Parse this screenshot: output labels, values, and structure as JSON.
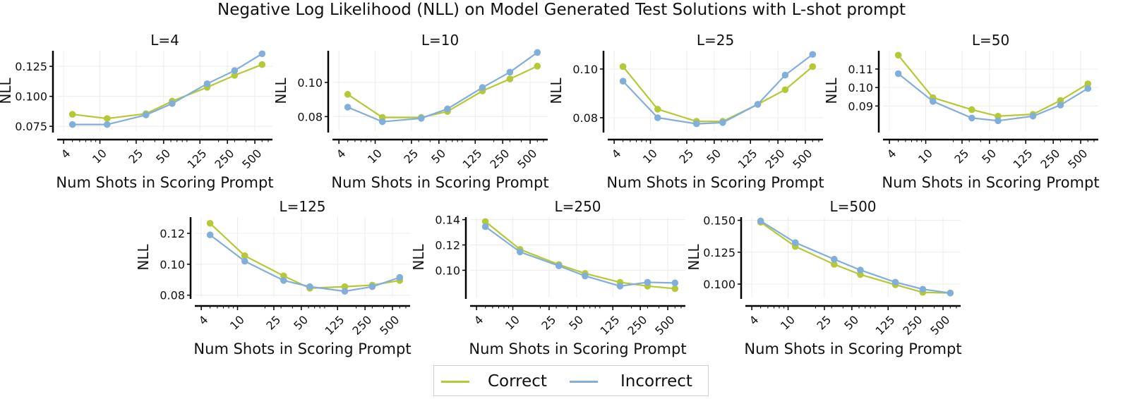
{
  "title": "Negative Log Likelihood (NLL) on Model Generated Test Solutions with L-shot prompt",
  "colors": {
    "correct": "#b5c934",
    "incorrect": "#82aedb",
    "grid": "#ececec",
    "axis": "#000000"
  },
  "legend": {
    "correct_label": "Correct",
    "incorrect_label": "Incorrect"
  },
  "chart_data": [
    {
      "type": "line",
      "title": "L=4",
      "xlabel": "Num Shots in Scoring Prompt",
      "ylabel": "NLL",
      "xscale": "log",
      "xlim": [
        3.4,
        780
      ],
      "ylim": [
        0.071,
        0.138
      ],
      "xticks": [
        4,
        10,
        25,
        50,
        125,
        250,
        500
      ],
      "yticks": [
        0.075,
        0.1,
        0.125
      ],
      "ytick_labels": [
        "0.075",
        "0.100",
        "0.125"
      ],
      "x": [
        5,
        12,
        32,
        62,
        150,
        300,
        600
      ],
      "series": [
        {
          "name": "Correct",
          "values": [
            0.085,
            0.0815,
            0.0855,
            0.096,
            0.1075,
            0.1175,
            0.1265
          ]
        },
        {
          "name": "Incorrect",
          "values": [
            0.0765,
            0.0765,
            0.0845,
            0.094,
            0.1105,
            0.1215,
            0.1355
          ]
        }
      ]
    },
    {
      "type": "line",
      "title": "L=10",
      "xlabel": "Num Shots in Scoring Prompt",
      "ylabel": "NLL",
      "xscale": "log",
      "xlim": [
        3.4,
        780
      ],
      "ylim": [
        0.0715,
        0.1185
      ],
      "xticks": [
        4,
        10,
        25,
        50,
        125,
        250,
        500
      ],
      "yticks": [
        0.08,
        0.1
      ],
      "ytick_labels": [
        "0.08",
        "0.10"
      ],
      "x": [
        5,
        12,
        32,
        62,
        150,
        300,
        600
      ],
      "series": [
        {
          "name": "Correct",
          "values": [
            0.093,
            0.0795,
            0.0795,
            0.083,
            0.095,
            0.102,
            0.1095
          ]
        },
        {
          "name": "Incorrect",
          "values": [
            0.0855,
            0.077,
            0.079,
            0.0845,
            0.097,
            0.106,
            0.1175
          ]
        }
      ]
    },
    {
      "type": "line",
      "title": "L=25",
      "xlabel": "Num Shots in Scoring Prompt",
      "ylabel": "NLL",
      "xscale": "log",
      "xlim": [
        3.4,
        780
      ],
      "ylim": [
        0.0745,
        0.1075
      ],
      "xticks": [
        4,
        10,
        25,
        50,
        125,
        250,
        500
      ],
      "yticks": [
        0.08,
        0.1
      ],
      "ytick_labels": [
        "0.08",
        "0.10"
      ],
      "x": [
        5,
        12,
        32,
        62,
        150,
        300,
        600
      ],
      "series": [
        {
          "name": "Correct",
          "values": [
            0.101,
            0.0835,
            0.0785,
            0.0785,
            0.0855,
            0.0915,
            0.101
          ]
        },
        {
          "name": "Incorrect",
          "values": [
            0.095,
            0.08,
            0.0775,
            0.078,
            0.0855,
            0.0975,
            0.106
          ]
        }
      ]
    },
    {
      "type": "line",
      "title": "L=50",
      "xlabel": "Num Shots in Scoring Prompt",
      "ylabel": "NLL",
      "xscale": "log",
      "xlim": [
        3.4,
        780
      ],
      "ylim": [
        0.0764,
        0.1199
      ],
      "xticks": [
        4,
        10,
        25,
        50,
        125,
        250,
        500
      ],
      "yticks": [
        0.09,
        0.1,
        0.11
      ],
      "ytick_labels": [
        "0.09",
        "0.10",
        "0.11"
      ],
      "x": [
        5,
        12,
        32,
        62,
        150,
        300,
        600
      ],
      "series": [
        {
          "name": "Correct",
          "values": [
            0.1175,
            0.0945,
            0.088,
            0.0845,
            0.0855,
            0.093,
            0.102
          ]
        },
        {
          "name": "Incorrect",
          "values": [
            0.1075,
            0.0925,
            0.0835,
            0.082,
            0.0845,
            0.0905,
            0.0995
          ]
        }
      ]
    },
    {
      "type": "line",
      "title": "L=125",
      "xlabel": "Num Shots in Scoring Prompt",
      "ylabel": "NLL",
      "xscale": "log",
      "xlim": [
        3.4,
        780
      ],
      "ylim": [
        0.0785,
        0.1305
      ],
      "xticks": [
        4,
        10,
        25,
        50,
        125,
        250,
        500
      ],
      "yticks": [
        0.08,
        0.1,
        0.12
      ],
      "ytick_labels": [
        "0.08",
        "0.10",
        "0.12"
      ],
      "x": [
        5,
        12,
        32,
        62,
        150,
        300,
        600
      ],
      "series": [
        {
          "name": "Correct",
          "values": [
            0.1265,
            0.1055,
            0.0925,
            0.0845,
            0.0855,
            0.0865,
            0.0895
          ]
        },
        {
          "name": "Incorrect",
          "values": [
            0.119,
            0.102,
            0.0895,
            0.0855,
            0.0825,
            0.0855,
            0.0915
          ]
        }
      ]
    },
    {
      "type": "line",
      "title": "L=250",
      "xlabel": "Num Shots in Scoring Prompt",
      "ylabel": "NLL",
      "xscale": "log",
      "xlim": [
        3.4,
        780
      ],
      "ylim": [
        0.0785,
        0.142
      ],
      "xticks": [
        4,
        10,
        25,
        50,
        125,
        250,
        500
      ],
      "yticks": [
        0.1,
        0.12,
        0.14
      ],
      "ytick_labels": [
        "0.10",
        "0.12",
        "0.14"
      ],
      "x": [
        5,
        12,
        32,
        62,
        150,
        300,
        600
      ],
      "series": [
        {
          "name": "Correct",
          "values": [
            0.1385,
            0.1165,
            0.1045,
            0.0975,
            0.0905,
            0.0875,
            0.0855
          ]
        },
        {
          "name": "Incorrect",
          "values": [
            0.1345,
            0.1145,
            0.1035,
            0.0955,
            0.0875,
            0.0905,
            0.09
          ]
        }
      ]
    },
    {
      "type": "line",
      "title": "L=500",
      "xlabel": "Num Shots in Scoring Prompt",
      "ylabel": "NLL",
      "xscale": "log",
      "xlim": [
        3.4,
        780
      ],
      "ylim": [
        0.0895,
        0.1525
      ],
      "xticks": [
        4,
        10,
        25,
        50,
        125,
        250,
        500
      ],
      "yticks": [
        0.1,
        0.125,
        0.15
      ],
      "ytick_labels": [
        "0.100",
        "0.125",
        "0.150"
      ],
      "x": [
        5,
        12,
        32,
        62,
        150,
        300,
        600
      ],
      "series": [
        {
          "name": "Correct",
          "values": [
            0.1485,
            0.1295,
            0.1155,
            0.1075,
            0.0995,
            0.0935,
            0.093
          ]
        },
        {
          "name": "Incorrect",
          "values": [
            0.1495,
            0.1325,
            0.1195,
            0.111,
            0.1015,
            0.096,
            0.093
          ]
        }
      ]
    }
  ]
}
